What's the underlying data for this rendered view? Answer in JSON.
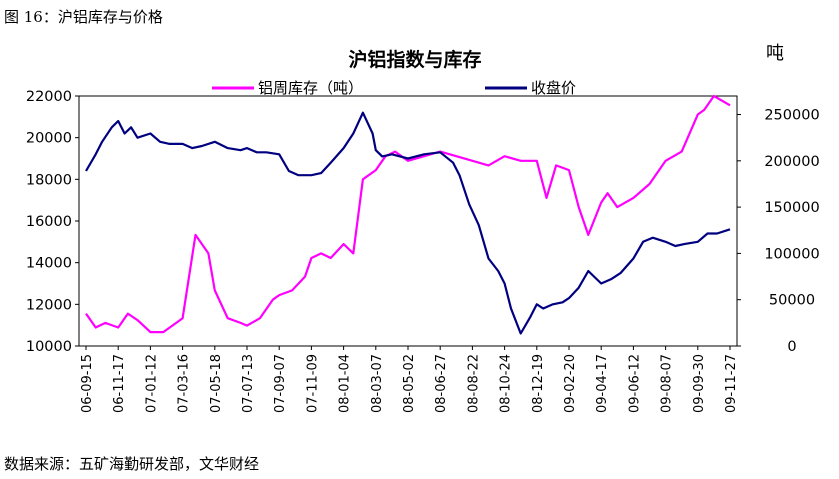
{
  "figure_caption": "图 16：沪铝库存与价格",
  "source_note": "数据来源：五矿海勤研发部，文华财经",
  "chart_data": {
    "type": "line",
    "title": "沪铝指数与库存",
    "right_unit": "吨",
    "x_ticks": [
      "06-09-15",
      "06-11-17",
      "07-01-12",
      "07-03-16",
      "07-05-18",
      "07-07-13",
      "07-09-07",
      "07-11-09",
      "08-01-04",
      "08-03-07",
      "08-05-02",
      "08-06-27",
      "08-08-22",
      "08-10-24",
      "08-12-19",
      "09-02-20",
      "09-04-17",
      "09-06-12",
      "09-08-07",
      "09-09-30",
      "09-11-27"
    ],
    "x_tick_display": [
      "06-09-15",
      "06-11-17",
      "07-01-12",
      "07-03-16",
      "07-05-18",
      "07-07-13",
      "07-09-07",
      "07-11-09",
      "08-01-04",
      "08-03-07",
      "08-05-02",
      "08-06-27",
      "08-08-22",
      "08-10-24",
      "08-12-19",
      "09-02-20",
      "09-04-17",
      "09-06-12",
      "09-08-07",
      "09-09-30",
      "09-11-27"
    ],
    "y_left": {
      "ticks": [
        "10000",
        "12000",
        "14000",
        "16000",
        "18000",
        "20000",
        "22000"
      ],
      "min": 10000,
      "max": 22000
    },
    "y_right": {
      "ticks": [
        "0",
        "50000",
        "100000",
        "150000",
        "200000",
        "250000"
      ],
      "min": 0,
      "max": 270000
    },
    "series": [
      {
        "name": "铝周库存（吨）",
        "axis": "right",
        "color": "#ff00ff",
        "x": [
          0,
          0.3,
          0.6,
          1,
          1.3,
          1.6,
          2,
          2.4,
          2.8,
          3,
          3.4,
          3.8,
          4,
          4.4,
          4.8,
          5,
          5.4,
          5.8,
          6,
          6.4,
          6.8,
          7,
          7.3,
          7.6,
          8,
          8.3,
          8.6,
          9,
          9.3,
          9.6,
          10,
          10.5,
          11,
          11.5,
          12,
          12.5,
          13,
          13.5,
          14,
          14.3,
          14.6,
          15,
          15.3,
          15.6,
          16,
          16.2,
          16.5,
          17,
          17.5,
          18,
          18.5,
          19,
          19.2,
          19.5,
          20
        ],
        "values": [
          35000,
          20000,
          25000,
          20000,
          35000,
          28000,
          15000,
          15000,
          25000,
          30000,
          120000,
          100000,
          60000,
          30000,
          25000,
          22000,
          30000,
          50000,
          55000,
          60000,
          75000,
          95000,
          100000,
          95000,
          110000,
          100000,
          180000,
          190000,
          205000,
          210000,
          200000,
          205000,
          210000,
          205000,
          200000,
          195000,
          205000,
          200000,
          200000,
          160000,
          195000,
          190000,
          150000,
          120000,
          155000,
          165000,
          150000,
          160000,
          175000,
          200000,
          210000,
          250000,
          255000,
          270000,
          260000
        ]
      },
      {
        "name": "收盘价",
        "axis": "left",
        "color": "#000080",
        "x": [
          0,
          0.3,
          0.5,
          0.8,
          1,
          1.2,
          1.4,
          1.6,
          2,
          2.3,
          2.6,
          3,
          3.3,
          3.6,
          4,
          4.4,
          4.8,
          5,
          5.3,
          5.6,
          6,
          6.3,
          6.6,
          7,
          7.3,
          7.6,
          8,
          8.3,
          8.6,
          8.9,
          9,
          9.2,
          9.5,
          10,
          10.5,
          11,
          11.4,
          11.6,
          11.9,
          12.2,
          12.5,
          12.8,
          13,
          13.2,
          13.5,
          13.8,
          14,
          14.2,
          14.5,
          14.8,
          15,
          15.3,
          15.6,
          16,
          16.3,
          16.6,
          17,
          17.3,
          17.6,
          18,
          18.3,
          18.6,
          19,
          19.3,
          19.6,
          20
        ],
        "values": [
          18400,
          19200,
          19800,
          20500,
          20800,
          20200,
          20500,
          20000,
          20200,
          19800,
          19700,
          19700,
          19500,
          19600,
          19800,
          19500,
          19400,
          19500,
          19300,
          19300,
          19200,
          18400,
          18200,
          18200,
          18300,
          18800,
          19500,
          20200,
          21200,
          20200,
          19400,
          19100,
          19200,
          19000,
          19200,
          19300,
          18800,
          18200,
          16800,
          15800,
          14200,
          13600,
          13000,
          11800,
          10600,
          11400,
          12000,
          11800,
          12000,
          12100,
          12300,
          12800,
          13600,
          13000,
          13200,
          13500,
          14200,
          15000,
          15200,
          15000,
          14800,
          14900,
          15000,
          15400,
          15400,
          15600
        ]
      }
    ]
  }
}
